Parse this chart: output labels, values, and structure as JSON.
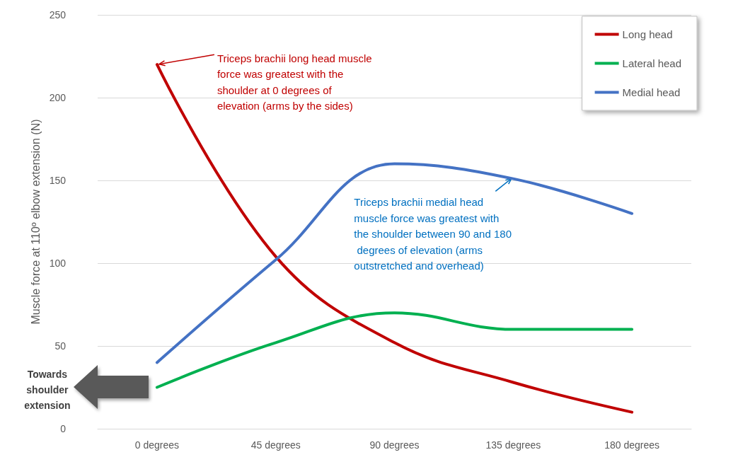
{
  "chart_data": {
    "type": "line",
    "ylabel": "Muscle force at 110º elbow extension (N)",
    "categories": [
      "0 degrees",
      "45 degrees",
      "90 degrees",
      "135 degrees",
      "180 degrees"
    ],
    "series": [
      {
        "name": "Long head",
        "color": "#c00000",
        "values": [
          220,
          104,
          52,
          28,
          10
        ]
      },
      {
        "name": "Lateral head",
        "color": "#00b050",
        "values": [
          25,
          52,
          70,
          60,
          60
        ]
      },
      {
        "name": "Medial head",
        "color": "#4472c4",
        "values": [
          40,
          102,
          160,
          151,
          130
        ]
      }
    ],
    "ylim": [
      0,
      250
    ],
    "yticks": [
      0,
      50,
      100,
      150,
      200,
      250
    ],
    "grid": "y",
    "legend": "top right",
    "marker": "none",
    "line_style": "solid",
    "annotations": [
      {
        "text": "Triceps brachii long head muscle force was greatest with the shoulder at 0 degrees of elevation (arms by the sides)",
        "x": "0 degrees",
        "y": 220
      },
      {
        "text": "Triceps brachii medial head muscle force was greatest with the shoulder between 90 and 180 degrees of elevation (arms outstretched and overhead)",
        "x": "135 degrees",
        "y": 152
      },
      "Towards shoulder extension"
    ]
  }
}
